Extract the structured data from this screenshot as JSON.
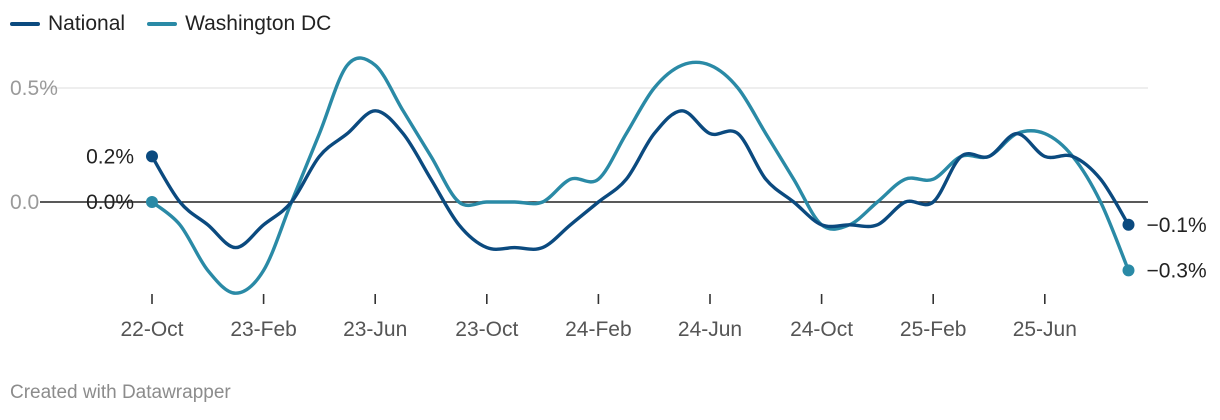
{
  "chart_data": {
    "type": "line",
    "title": "",
    "xlabel": "",
    "ylabel": "",
    "ylim": [
      -0.4,
      0.6
    ],
    "y_ticks": [
      {
        "value": 0.5,
        "label": "0.5%"
      },
      {
        "value": 0.0,
        "label": "0.0"
      }
    ],
    "grid": true,
    "legend_position": "top-left",
    "x_tick_labels": [
      "22-Oct",
      "23-Feb",
      "23-Jun",
      "23-Oct",
      "24-Feb",
      "24-Jun",
      "24-Oct",
      "25-Feb",
      "25-Jun"
    ],
    "x_tick_index": [
      0,
      4,
      8,
      12,
      16,
      20,
      24,
      28,
      32
    ],
    "series": [
      {
        "name": "National",
        "color": "#0b4a7f",
        "values": [
          0.2,
          0.0,
          -0.1,
          -0.2,
          -0.1,
          0.0,
          0.2,
          0.3,
          0.4,
          0.3,
          0.1,
          -0.1,
          -0.2,
          -0.2,
          -0.2,
          -0.1,
          0.0,
          0.1,
          0.3,
          0.4,
          0.3,
          0.3,
          0.1,
          0.0,
          -0.1,
          -0.1,
          -0.1,
          0.0,
          0.0,
          0.2,
          0.2,
          0.3,
          0.2,
          0.2,
          0.1,
          -0.1
        ],
        "start_label": "0.2%",
        "end_label": "−0.1%"
      },
      {
        "name": "Washington DC",
        "color": "#2a8aa6",
        "values": [
          0.0,
          -0.1,
          -0.3,
          -0.4,
          -0.3,
          0.0,
          0.3,
          0.6,
          0.6,
          0.4,
          0.2,
          0.0,
          0.0,
          0.0,
          0.0,
          0.1,
          0.1,
          0.3,
          0.5,
          0.6,
          0.6,
          0.5,
          0.3,
          0.1,
          -0.1,
          -0.1,
          0.0,
          0.1,
          0.1,
          0.2,
          0.2,
          0.3,
          0.3,
          0.2,
          0.0,
          -0.3
        ],
        "start_label": "0.0%",
        "end_label": "−0.3%"
      }
    ]
  },
  "footer": {
    "credit": "Created with Datawrapper"
  }
}
